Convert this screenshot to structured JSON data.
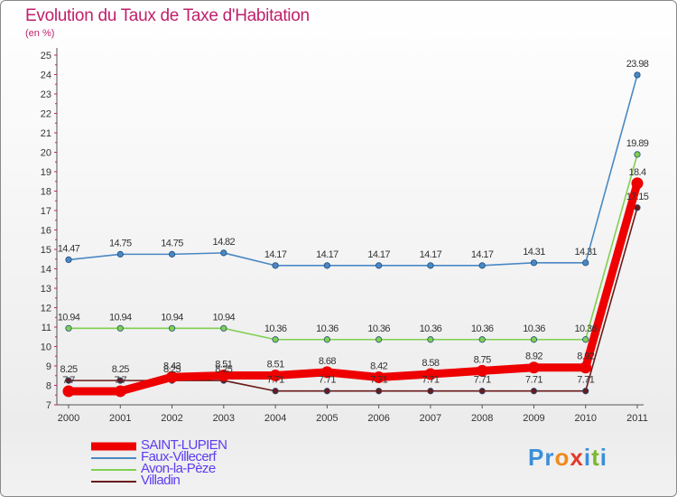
{
  "title": "Evolution du Taux de Taxe d'Habitation",
  "subtitle": "(en %)",
  "logo": {
    "letters": [
      "P",
      "r",
      "o",
      "x",
      "i",
      "t",
      "i"
    ],
    "colors": [
      "#3a8fd8",
      "#3a8fd8",
      "#f08a1c",
      "#e23a2a",
      "#3a8fd8",
      "#7ab830",
      "#3a8fd8"
    ]
  },
  "chart_data": {
    "type": "line",
    "title": "Evolution du Taux de Taxe d'Habitation",
    "ylabel": "(en %)",
    "xlabel": "",
    "x": [
      "2000",
      "2001",
      "2002",
      "2003",
      "2004",
      "2005",
      "2006",
      "2007",
      "2008",
      "2009",
      "2010",
      "2011"
    ],
    "ylim": [
      7,
      25
    ],
    "yticks": [
      7,
      8,
      9,
      10,
      11,
      12,
      13,
      14,
      15,
      16,
      17,
      18,
      19,
      20,
      21,
      22,
      23,
      24,
      25
    ],
    "grid": false,
    "legend_position": "bottom-left",
    "series": [
      {
        "name": "Faux-Villecerf",
        "color": "#4a88c4",
        "values": [
          14.47,
          14.75,
          14.75,
          14.82,
          14.17,
          14.17,
          14.17,
          14.17,
          14.17,
          14.31,
          14.31,
          23.98
        ],
        "labels": [
          "14.47",
          "14.75",
          "14.75",
          "14.82",
          "14.17",
          "14.17",
          "14.17",
          "14.17",
          "14.17",
          "14.31",
          "14.31",
          "23.98"
        ]
      },
      {
        "name": "Avon-la-Pèze",
        "color": "#80d050",
        "values": [
          10.94,
          10.94,
          10.94,
          10.94,
          10.36,
          10.36,
          10.36,
          10.36,
          10.36,
          10.36,
          10.36,
          19.89
        ],
        "labels": [
          "10.94",
          "10.94",
          "10.94",
          "10.94",
          "10.36",
          "10.36",
          "10.36",
          "10.36",
          "10.36",
          "10.36",
          "10.36",
          "19.89"
        ]
      },
      {
        "name": "Villadin",
        "color": "#6b1a1a",
        "values": [
          8.25,
          8.25,
          8.25,
          8.25,
          7.71,
          7.71,
          7.71,
          7.71,
          7.71,
          7.71,
          7.71,
          17.15
        ],
        "labels": [
          "8.25",
          "8.25",
          "8.25",
          "8.25",
          "7.71",
          "7.71",
          "7.71",
          "7.71",
          "7.71",
          "7.71",
          "7.71",
          "17.15"
        ]
      },
      {
        "name": "SAINT-LUPIEN",
        "color": "#ee0000",
        "values": [
          7.7,
          7.7,
          8.43,
          8.51,
          8.51,
          8.68,
          8.42,
          8.58,
          8.75,
          8.92,
          8.92,
          18.4
        ],
        "labels": [
          "7.7",
          "7.7",
          "8.43",
          "8.51",
          "8.51",
          "8.68",
          "8.42",
          "8.58",
          "8.75",
          "8.92",
          "8.92",
          "18.4"
        ]
      }
    ]
  },
  "legend": [
    {
      "name": "SAINT-LUPIEN",
      "color": "#ee0000"
    },
    {
      "name": "Faux-Villecerf",
      "color": "#4a88c4"
    },
    {
      "name": "Avon-la-Pèze",
      "color": "#80d050"
    },
    {
      "name": "Villadin",
      "color": "#6b1a1a"
    }
  ]
}
